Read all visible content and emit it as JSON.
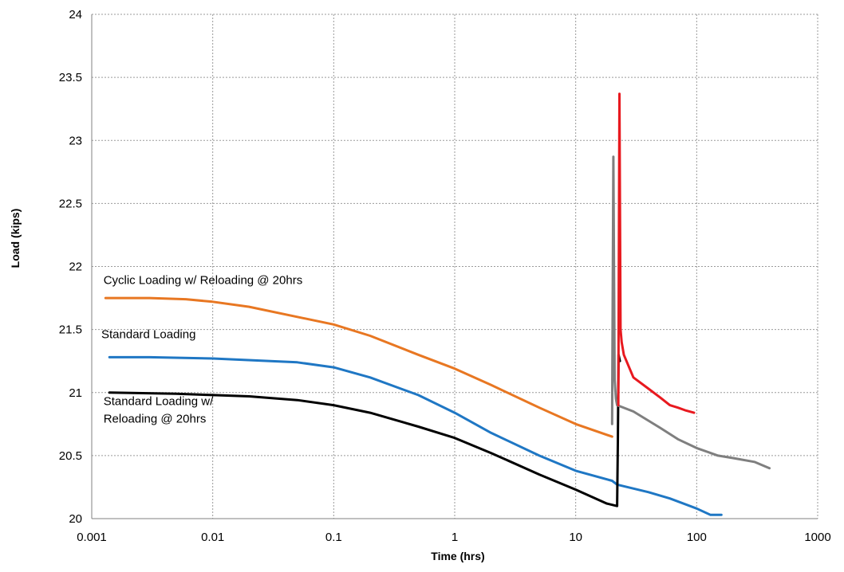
{
  "chart_data": {
    "type": "line",
    "title": "",
    "xlabel": "Time (hrs)",
    "ylabel": "Load (kips)",
    "x_scale": "log",
    "xlim": [
      0.001,
      1000
    ],
    "ylim": [
      20,
      24
    ],
    "grid": true,
    "x_ticks": [
      0.001,
      0.01,
      0.1,
      1,
      10,
      100,
      1000
    ],
    "x_tick_labels": [
      "0.001",
      "0.01",
      "0.1",
      "1",
      "10",
      "100",
      "1000"
    ],
    "y_ticks": [
      20,
      20.5,
      21,
      21.5,
      22,
      22.5,
      23,
      23.5,
      24
    ],
    "y_tick_labels": [
      "20",
      "20.5",
      "21",
      "21.5",
      "22",
      "22.5",
      "23",
      "23.5",
      "24"
    ],
    "annotations": [
      {
        "lines": [
          "Cyclic Loading w/ Reloading @ 20hrs"
        ],
        "x": 0.00125,
        "y": 21.86
      },
      {
        "lines": [
          "Standard Loading"
        ],
        "x": 0.0012,
        "y": 21.43
      },
      {
        "lines": [
          "Standard Loading w/",
          "Reloading @ 20hrs"
        ],
        "x": 0.00125,
        "y": 20.9
      }
    ],
    "series": [
      {
        "color": "#E87722",
        "x": [
          0.0013,
          0.003,
          0.006,
          0.01,
          0.02,
          0.05,
          0.1,
          0.2,
          0.5,
          1,
          2,
          5,
          10,
          20
        ],
        "y": [
          21.75,
          21.75,
          21.74,
          21.72,
          21.68,
          21.6,
          21.54,
          21.45,
          21.3,
          21.19,
          21.06,
          20.88,
          20.75,
          20.65
        ]
      },
      {
        "color": "#1F77C4",
        "x": [
          0.0014,
          0.003,
          0.01,
          0.03,
          0.05,
          0.1,
          0.2,
          0.5,
          1,
          2,
          5,
          10,
          20,
          22,
          40,
          60,
          100,
          130,
          160
        ],
        "y": [
          21.28,
          21.28,
          21.27,
          21.25,
          21.24,
          21.2,
          21.12,
          20.98,
          20.84,
          20.68,
          20.5,
          20.38,
          20.3,
          20.27,
          20.21,
          20.16,
          20.08,
          20.03,
          20.03
        ]
      },
      {
        "color": "#000000",
        "x": [
          0.0014,
          0.005,
          0.01,
          0.02,
          0.05,
          0.1,
          0.2,
          0.5,
          1,
          2,
          5,
          10,
          18,
          22,
          22.3,
          22.6,
          23.2
        ],
        "y": [
          21.0,
          20.99,
          20.98,
          20.97,
          20.94,
          20.9,
          20.84,
          20.73,
          20.64,
          20.52,
          20.35,
          20.23,
          20.12,
          20.1,
          20.6,
          21.3,
          21.25
        ]
      },
      {
        "color": "#7F7F7F",
        "x": [
          20,
          20.5,
          21,
          21.5,
          22,
          30,
          50,
          70,
          100,
          150,
          200,
          300,
          400
        ],
        "y": [
          20.75,
          22.87,
          21.1,
          20.95,
          20.9,
          20.85,
          20.72,
          20.63,
          20.56,
          20.5,
          20.48,
          20.45,
          20.4
        ]
      },
      {
        "color": "#E8191F",
        "x": [
          22.5,
          23,
          23.5,
          24,
          25,
          30,
          40,
          50,
          60,
          70,
          80,
          95
        ],
        "y": [
          20.9,
          23.37,
          21.5,
          21.4,
          21.3,
          21.12,
          21.03,
          20.96,
          20.9,
          20.88,
          20.86,
          20.84
        ]
      }
    ]
  }
}
